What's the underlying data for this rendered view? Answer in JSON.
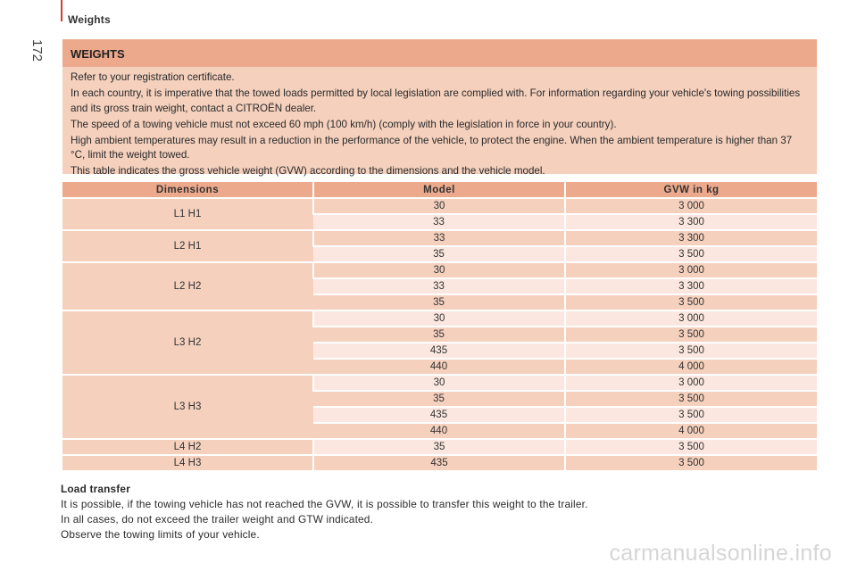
{
  "header": {
    "title": "Weights",
    "page_number": "172"
  },
  "weights_box": {
    "heading": "WEIGHTS",
    "paragraphs": [
      "Refer to your registration certificate.",
      "In each country, it is imperative that the towed loads permitted by local legislation are complied with. For information regarding your vehicle's towing possibilities and its gross train weight, contact a CITROËN dealer.",
      "The speed of a towing vehicle must not exceed 60 mph (100 km/h) (comply with the legislation in force in your country).",
      "High ambient temperatures may result in a reduction in the performance of the vehicle, to protect the engine. When the ambient temperature is higher than 37 °C, limit the weight towed.",
      "This table indicates the gross vehicle weight (GVW) according to the dimensions and the vehicle model."
    ]
  },
  "table": {
    "headers": [
      "Dimensions",
      "Model",
      "GVW in kg"
    ],
    "groups": [
      {
        "dimension": "L1 H1",
        "rows": [
          {
            "model": "30",
            "gvw": "3 000"
          },
          {
            "model": "33",
            "gvw": "3 300"
          }
        ]
      },
      {
        "dimension": "L2 H1",
        "rows": [
          {
            "model": "33",
            "gvw": "3 300"
          },
          {
            "model": "35",
            "gvw": "3 500"
          }
        ]
      },
      {
        "dimension": "L2 H2",
        "rows": [
          {
            "model": "30",
            "gvw": "3 000"
          },
          {
            "model": "33",
            "gvw": "3 300"
          },
          {
            "model": "35",
            "gvw": "3 500"
          }
        ]
      },
      {
        "dimension": "L3 H2",
        "rows": [
          {
            "model": "30",
            "gvw": "3 000"
          },
          {
            "model": "35",
            "gvw": "3 500"
          },
          {
            "model": "435",
            "gvw": "3 500"
          },
          {
            "model": "440",
            "gvw": "4 000"
          }
        ]
      },
      {
        "dimension": "L3 H3",
        "rows": [
          {
            "model": "30",
            "gvw": "3 000"
          },
          {
            "model": "35",
            "gvw": "3 500"
          },
          {
            "model": "435",
            "gvw": "3 500"
          },
          {
            "model": "440",
            "gvw": "4 000"
          }
        ]
      },
      {
        "dimension": "L4 H2",
        "rows": [
          {
            "model": "35",
            "gvw": "3 500"
          }
        ]
      },
      {
        "dimension": "L4 H3",
        "rows": [
          {
            "model": "435",
            "gvw": "3 500"
          }
        ]
      }
    ]
  },
  "load_transfer": {
    "title": "Load transfer",
    "lines": [
      "It is possible, if the towing vehicle has not reached the GVW, it is possible to transfer this weight to the trailer.",
      "In all cases, do not exceed the trailer weight and GTW indicated.",
      "Observe the towing limits of your vehicle."
    ]
  },
  "watermark": "carmanualsonline.info"
}
